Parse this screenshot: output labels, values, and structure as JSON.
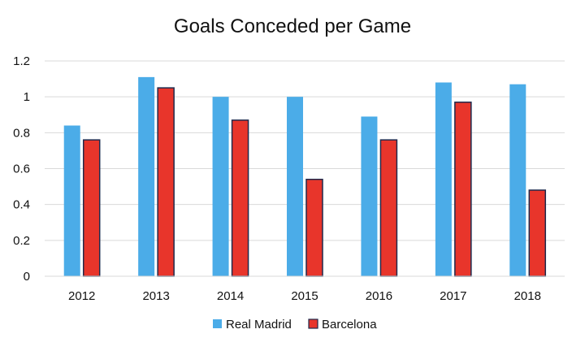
{
  "chart_data": {
    "type": "bar",
    "title": "Goals Conceded per Game",
    "xlabel": "",
    "ylabel": "",
    "categories": [
      "2012",
      "2013",
      "2014",
      "2015",
      "2016",
      "2017",
      "2018"
    ],
    "series": [
      {
        "name": "Real Madrid",
        "color": "#4bace8",
        "values": [
          0.84,
          1.11,
          1.0,
          1.0,
          0.89,
          1.08,
          1.07
        ]
      },
      {
        "name": "Barcelona",
        "color": "#e8352b",
        "edge_color": "#1f2a4d",
        "values": [
          0.76,
          1.05,
          0.87,
          0.54,
          0.76,
          0.97,
          0.48
        ]
      }
    ],
    "ylim": [
      0,
      1.2
    ],
    "yticks": [
      "0",
      "0.2",
      "0.4",
      "0.6",
      "0.8",
      "1",
      "1.2"
    ],
    "grid": true,
    "legend": "bottom"
  }
}
